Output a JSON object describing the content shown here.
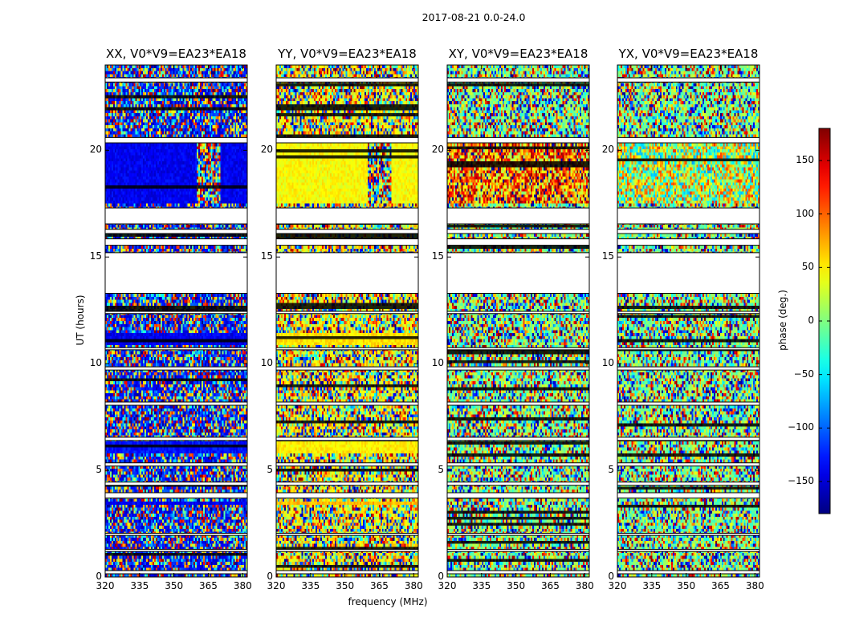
{
  "figure": {
    "suptitle": "2017-08-21 0.0-24.0"
  },
  "chart_data": [
    {
      "type": "heatmap",
      "title": "XX, V0*V9=EA23*EA18",
      "xlabel": "frequency (MHz)",
      "ylabel": "UT (hours)",
      "xlim": [
        320,
        382
      ],
      "ylim": [
        0,
        24
      ],
      "xticks": [
        "320",
        "335",
        "350",
        "365",
        "380"
      ],
      "yticks": [
        "0",
        "5",
        "10",
        "15",
        "20"
      ],
      "baseline_phase_deg": -130,
      "coherent_blocks": [
        {
          "ut": [
            17.5,
            20.3
          ],
          "phase_deg": -140,
          "rfi_freq": [
            360,
            370
          ]
        },
        {
          "ut": [
            10.9,
            11.4
          ],
          "phase_deg": -140
        },
        {
          "ut": [
            3.4,
            3.6
          ],
          "phase_deg": -140
        },
        {
          "ut": [
            5.8,
            6.3
          ],
          "phase_deg": -130
        }
      ]
    },
    {
      "type": "heatmap",
      "title": "YY, V0*V9=EA23*EA18",
      "xlabel": "frequency (MHz)",
      "ylabel": "",
      "xlim": [
        320,
        382
      ],
      "ylim": [
        0,
        24
      ],
      "xticks": [
        "320",
        "335",
        "350",
        "365",
        "380"
      ],
      "yticks": [
        "0",
        "5",
        "10",
        "15",
        "20"
      ],
      "baseline_phase_deg": 45,
      "coherent_blocks": [
        {
          "ut": [
            17.5,
            20.3
          ],
          "phase_deg": 45,
          "rfi_freq": [
            360,
            370
          ]
        },
        {
          "ut": [
            10.9,
            11.4
          ],
          "phase_deg": 55
        },
        {
          "ut": [
            3.4,
            3.6
          ],
          "phase_deg": 70
        },
        {
          "ut": [
            5.8,
            6.3
          ],
          "phase_deg": 50
        }
      ]
    },
    {
      "type": "heatmap",
      "title": "XY, V0*V9=EA23*EA18",
      "xlabel": "frequency (MHz)",
      "ylabel": "",
      "xlim": [
        320,
        382
      ],
      "ylim": [
        0,
        24
      ],
      "xticks": [
        "320",
        "335",
        "350",
        "365",
        "380"
      ],
      "yticks": [
        "0",
        "5",
        "10",
        "15",
        "20"
      ],
      "baseline_phase_deg": 0,
      "coherent_blocks": [
        {
          "ut": [
            17.5,
            20.3
          ],
          "phase_deg": 100,
          "noisy": true
        }
      ]
    },
    {
      "type": "heatmap",
      "title": "YX, V0*V9=EA23*EA18",
      "xlabel": "frequency (MHz)",
      "ylabel": "",
      "xlim": [
        320,
        382
      ],
      "ylim": [
        0,
        24
      ],
      "xticks": [
        "320",
        "335",
        "350",
        "365",
        "380"
      ],
      "yticks": [
        "0",
        "5",
        "10",
        "15",
        "20"
      ],
      "baseline_phase_deg": 0,
      "coherent_blocks": [
        {
          "ut": [
            17.5,
            20.3
          ],
          "phase_deg": 20,
          "noisy": true
        }
      ]
    }
  ],
  "flagged_ut_ranges": [
    [
      0.15,
      0.3
    ],
    [
      1.2,
      1.3
    ],
    [
      1.95,
      2.05
    ],
    [
      3.7,
      3.95
    ],
    [
      4.3,
      4.45
    ],
    [
      5.2,
      5.35
    ],
    [
      6.4,
      6.55
    ],
    [
      8.05,
      8.2
    ],
    [
      9.7,
      9.85
    ],
    [
      10.65,
      10.75
    ],
    [
      12.35,
      12.45
    ],
    [
      13.3,
      15.2
    ],
    [
      15.55,
      15.85
    ],
    [
      16.1,
      16.3
    ],
    [
      16.55,
      17.3
    ],
    [
      20.35,
      20.6
    ],
    [
      23.2,
      23.4
    ]
  ],
  "colorbar": {
    "label": "phase (deg.)",
    "range": [
      -180,
      180
    ],
    "ticks": [
      "150",
      "100",
      "50",
      "0",
      "−50",
      "−100",
      "−150"
    ],
    "colormap": "jet"
  }
}
